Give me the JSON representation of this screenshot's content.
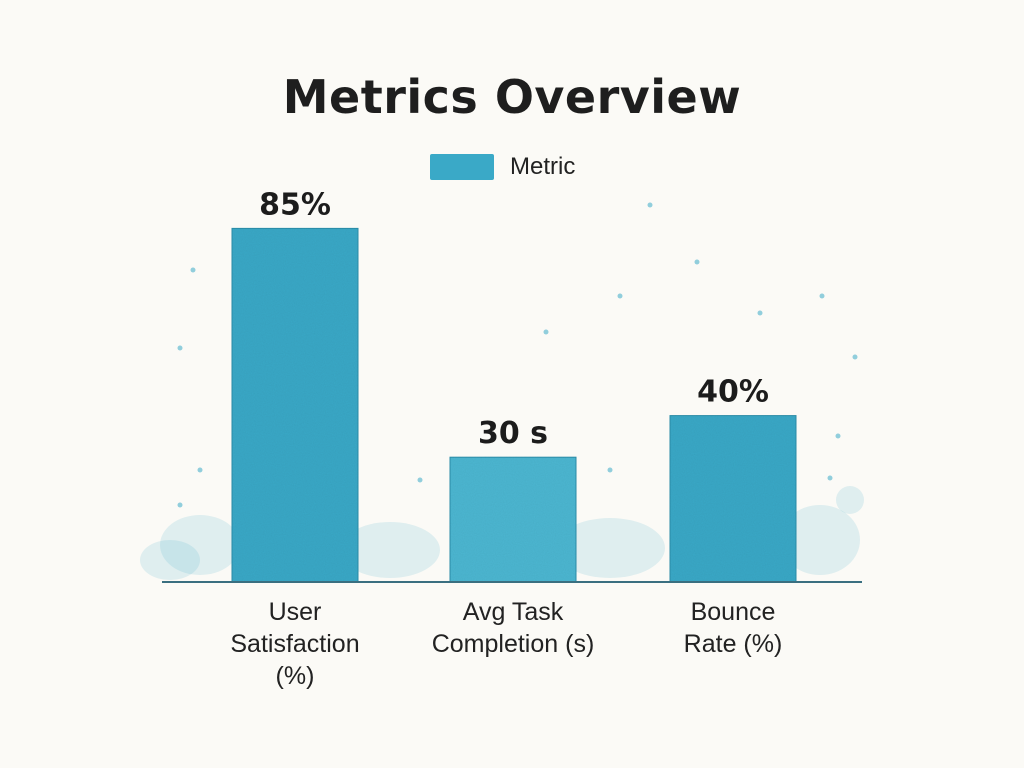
{
  "chart_data": {
    "type": "bar",
    "title": "Metrics Overview",
    "legend": {
      "entries": [
        "Metric"
      ],
      "position": "top-center"
    },
    "categories": [
      "User\nSatisfaction\n(%)",
      "Avg Task\nCompletion (s)",
      "Bounce\nRate (%)"
    ],
    "series": [
      {
        "name": "Metric",
        "values": [
          85,
          30,
          40
        ]
      }
    ],
    "data_labels": [
      "85%",
      "30 s",
      "40%"
    ],
    "ylim": [
      0,
      100
    ],
    "grid": false,
    "xlabel": "",
    "ylabel": ""
  },
  "colors": {
    "bar_fill": "#3aa9c7",
    "bar_fill_alt": "#4db7d2",
    "axis": "#3a6f80",
    "background": "#fbfaf6"
  }
}
